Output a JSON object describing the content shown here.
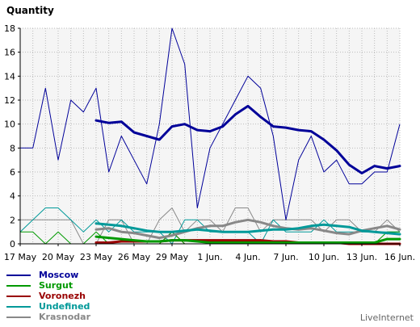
{
  "chart_data": {
    "type": "line",
    "ylabel": "Quantity",
    "ylim": [
      0,
      18
    ],
    "yticks": [
      0,
      2,
      4,
      6,
      8,
      10,
      12,
      14,
      16,
      18
    ],
    "x_count": 31,
    "xtick_labels": [
      {
        "i": 0,
        "label": "17 May"
      },
      {
        "i": 3,
        "label": "20 May"
      },
      {
        "i": 6,
        "label": "23 May"
      },
      {
        "i": 9,
        "label": "26 May"
      },
      {
        "i": 12,
        "label": "29 May"
      },
      {
        "i": 15,
        "label": "1 Jun."
      },
      {
        "i": 18,
        "label": "4 Jun."
      },
      {
        "i": 21,
        "label": "7 Jun."
      },
      {
        "i": 24,
        "label": "10 Jun."
      },
      {
        "i": 27,
        "label": "13 Jun."
      },
      {
        "i": 30,
        "label": "16 Jun."
      }
    ],
    "grid": true,
    "legend_placement": "bottom-left",
    "series": [
      {
        "name": "Moscow",
        "color": "#000099",
        "values": [
          8,
          8,
          13,
          7,
          12,
          11,
          13,
          6,
          9,
          7,
          5,
          10,
          18,
          15,
          3,
          8,
          10,
          12,
          14,
          13,
          9,
          2,
          7,
          9,
          6,
          7,
          5,
          5,
          6,
          6,
          10
        ],
        "average": [
          null,
          null,
          null,
          null,
          null,
          null,
          10.3,
          10.1,
          10.2,
          9.3,
          9.0,
          8.7,
          9.8,
          10.0,
          9.5,
          9.4,
          9.8,
          10.8,
          11.5,
          10.6,
          9.8,
          9.7,
          9.5,
          9.4,
          8.7,
          7.8,
          6.6,
          5.9,
          6.5,
          6.3,
          6.5
        ]
      },
      {
        "name": "Surgut",
        "color": "#009900",
        "values": [
          1,
          1,
          0,
          1,
          0,
          0,
          1,
          0,
          0,
          0,
          0,
          0,
          1,
          0,
          0,
          0,
          0,
          0,
          0,
          0,
          0,
          0,
          0,
          0,
          0,
          0,
          0,
          0,
          0,
          1,
          1
        ],
        "average": [
          null,
          null,
          null,
          null,
          null,
          null,
          0.6,
          0.5,
          0.4,
          0.3,
          0.2,
          0.2,
          0.3,
          0.3,
          0.2,
          0.1,
          0.1,
          0.1,
          0.1,
          0.1,
          0.1,
          0.1,
          0.1,
          0.1,
          0.1,
          0.1,
          0.1,
          0.1,
          0.1,
          0.4,
          0.4
        ]
      },
      {
        "name": "Voronezh",
        "color": "#990000",
        "values": [
          0,
          0,
          0,
          0,
          0,
          0,
          0,
          0,
          0,
          0,
          0,
          0,
          1,
          0,
          0,
          0,
          0,
          0,
          0,
          0,
          0,
          0,
          0,
          0,
          0,
          0,
          0,
          0,
          0,
          0,
          0
        ],
        "average": [
          null,
          null,
          null,
          null,
          null,
          null,
          0.1,
          0.1,
          0.2,
          0.2,
          0.2,
          0.2,
          0.3,
          0.3,
          0.3,
          0.3,
          0.3,
          0.3,
          0.3,
          0.3,
          0.2,
          0.2,
          0.1,
          0.1,
          0.1,
          0.1,
          0.0,
          0.0,
          0.0,
          0.0,
          0.0
        ]
      },
      {
        "name": "Undefined",
        "color": "#009999",
        "values": [
          1,
          2,
          3,
          3,
          2,
          1,
          2,
          1,
          2,
          1,
          1,
          1,
          0,
          2,
          2,
          1,
          1,
          1,
          1,
          0,
          2,
          1,
          1,
          1,
          2,
          1,
          1,
          1,
          1,
          1,
          1
        ],
        "average": [
          null,
          null,
          null,
          null,
          null,
          null,
          1.7,
          1.6,
          1.5,
          1.3,
          1.1,
          1.0,
          1.0,
          1.1,
          1.2,
          1.1,
          1.0,
          1.0,
          1.0,
          1.1,
          1.2,
          1.2,
          1.3,
          1.5,
          1.6,
          1.5,
          1.4,
          1.1,
          1.0,
          0.9,
          0.8
        ]
      },
      {
        "name": "Krasnodar",
        "color": "#888888",
        "values": [
          2,
          2,
          2,
          2,
          2,
          0,
          0,
          2,
          2,
          0,
          0,
          2,
          3,
          1,
          2,
          2,
          1,
          3,
          3,
          1,
          2,
          2,
          2,
          2,
          1,
          2,
          2,
          1,
          1,
          2,
          1
        ],
        "average": [
          null,
          null,
          null,
          null,
          null,
          null,
          1.2,
          1.3,
          1.0,
          0.9,
          0.7,
          0.5,
          0.7,
          1.0,
          1.3,
          1.5,
          1.5,
          1.8,
          2.0,
          1.8,
          1.5,
          1.3,
          1.2,
          1.3,
          1.1,
          0.9,
          0.8,
          1.1,
          1.3,
          1.5,
          1.2
        ]
      }
    ]
  },
  "brand": "LiveInternet"
}
